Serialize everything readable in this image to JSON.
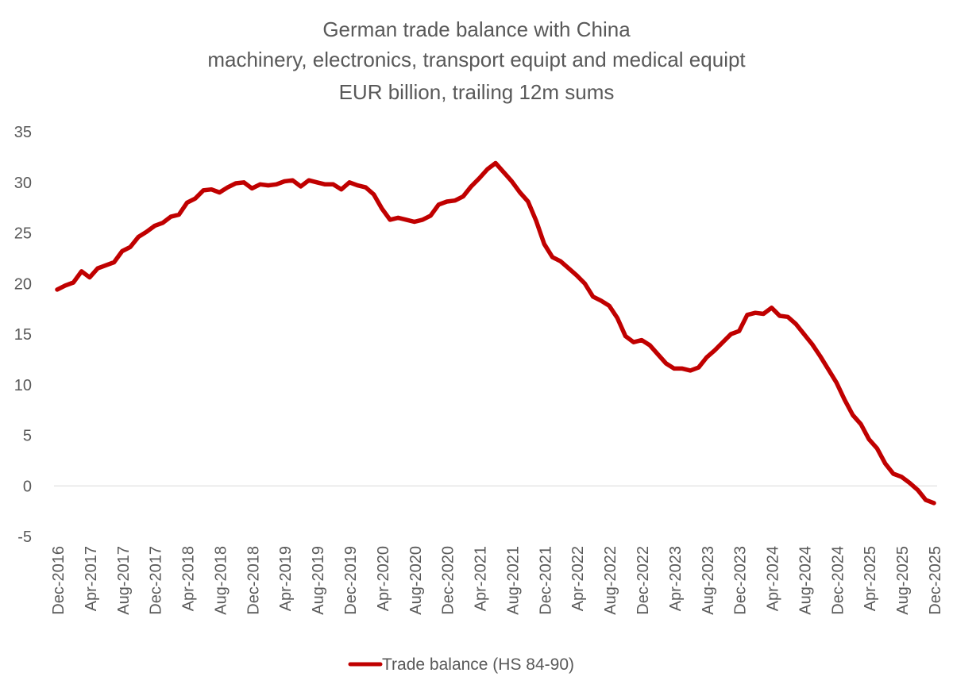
{
  "chart_data": {
    "type": "line",
    "title": [
      "German trade balance with China",
      "machinery, electronics, transport equipt and medical equipt",
      "EUR billion, trailing 12m sums"
    ],
    "xlabel": "",
    "ylabel": "",
    "ylim": [
      -5,
      35
    ],
    "yticks": [
      -5,
      0,
      5,
      10,
      15,
      20,
      25,
      30,
      35
    ],
    "x_start": "Dec-2016",
    "x_end": "Dec-2025",
    "x_tick_labels": [
      "Dec-2016",
      "Apr-2017",
      "Aug-2017",
      "Dec-2017",
      "Apr-2018",
      "Aug-2018",
      "Dec-2018",
      "Apr-2019",
      "Aug-2019",
      "Dec-2019",
      "Apr-2020",
      "Aug-2020",
      "Dec-2020",
      "Apr-2021",
      "Aug-2021",
      "Dec-2021",
      "Apr-2022",
      "Aug-2022",
      "Dec-2022",
      "Apr-2023",
      "Aug-2023",
      "Dec-2023",
      "Apr-2024",
      "Aug-2024",
      "Dec-2024",
      "Apr-2025",
      "Aug-2025",
      "Dec-2025"
    ],
    "grid": "zero-line only",
    "legend_position": "bottom",
    "series": [
      {
        "name": "Trade balance (HS 84-90)",
        "color": "#C00000",
        "values": [
          19.4,
          19.8,
          20.1,
          21.2,
          20.6,
          21.5,
          21.8,
          22.1,
          23.2,
          23.6,
          24.6,
          25.1,
          25.7,
          26.0,
          26.6,
          26.8,
          28.0,
          28.4,
          29.2,
          29.3,
          29.0,
          29.5,
          29.9,
          30.0,
          29.4,
          29.8,
          29.7,
          29.8,
          30.1,
          30.2,
          29.6,
          30.2,
          30.0,
          29.8,
          29.8,
          29.3,
          30.0,
          29.7,
          29.5,
          28.8,
          27.4,
          26.3,
          26.5,
          26.3,
          26.1,
          26.3,
          26.7,
          27.8,
          28.1,
          28.2,
          28.6,
          29.6,
          30.4,
          31.3,
          31.9,
          31.0,
          30.1,
          29.0,
          28.1,
          26.2,
          23.9,
          22.6,
          22.2,
          21.5,
          20.8,
          20.0,
          18.7,
          18.3,
          17.8,
          16.6,
          14.8,
          14.2,
          14.4,
          13.9,
          13.0,
          12.1,
          11.6,
          11.6,
          11.4,
          11.7,
          12.7,
          13.4,
          14.2,
          15.0,
          15.3,
          16.9,
          17.1,
          17.0,
          17.6,
          16.8,
          16.7,
          16.0,
          15.0,
          14.0,
          12.8,
          11.5,
          10.2,
          8.5,
          7.0,
          6.1,
          4.6,
          3.7,
          2.2,
          1.2,
          0.9,
          0.3,
          -0.4,
          -1.4,
          -1.7
        ]
      }
    ]
  }
}
